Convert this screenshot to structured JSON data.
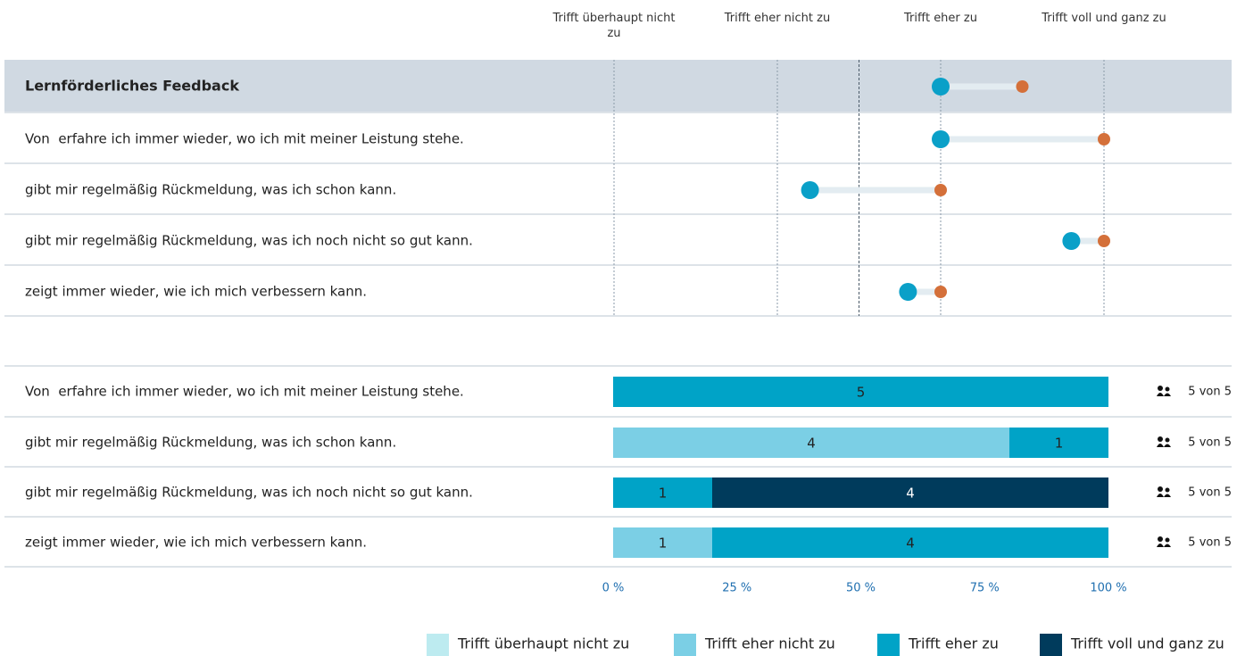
{
  "chart_data": [
    {
      "type": "dumbbell",
      "xlim": [
        1,
        4
      ],
      "xticks": [
        {
          "value": 1,
          "label": "Trifft überhaupt nicht zu"
        },
        {
          "value": 2,
          "label": "Trifft eher nicht zu"
        },
        {
          "value": 3,
          "label": "Trifft eher zu"
        },
        {
          "value": 4,
          "label": "Trifft voll und ganz zu"
        }
      ],
      "reference_line": 2.5,
      "group": {
        "label": "Lernförderliches Feedback",
        "values": [
          3.0,
          3.5
        ]
      },
      "categories": [
        "Von  erfahre ich immer wieder, wo ich mit meiner Leistung stehe.",
        "gibt mir regelmäßig Rückmeldung, was ich schon kann.",
        "gibt mir regelmäßig Rückmeldung, was ich noch nicht so gut kann.",
        "zeigt immer wieder, wie ich mich verbessern kann."
      ],
      "series": [
        {
          "color": "#0aa0c8",
          "values": [
            3.0,
            2.2,
            3.8,
            2.8
          ]
        },
        {
          "color": "#d4703a",
          "values": [
            4.0,
            3.0,
            4.0,
            3.0
          ]
        }
      ]
    },
    {
      "type": "stacked_bar",
      "categories": [
        "Von  erfahre ich immer wieder, wo ich mit meiner Leistung stehe.",
        "gibt mir regelmäßig Rückmeldung, was ich schon kann.",
        "gibt mir regelmäßig Rückmeldung, was ich noch nicht so gut kann.",
        "zeigt immer wieder, wie ich mich verbessern kann."
      ],
      "series": [
        {
          "name": "Trifft überhaupt nicht zu",
          "color": "#bdebf0",
          "values": [
            0,
            0,
            0,
            0
          ]
        },
        {
          "name": "Trifft eher nicht zu",
          "color": "#7bcfe5",
          "values": [
            0,
            4,
            0,
            1
          ]
        },
        {
          "name": "Trifft eher zu",
          "color": "#00a3c7",
          "values": [
            5,
            1,
            1,
            4
          ]
        },
        {
          "name": "Trifft voll und ganz zu",
          "color": "#003b5c",
          "values": [
            0,
            0,
            4,
            0
          ]
        }
      ],
      "n_labels": [
        "5 von 5",
        "5 von 5",
        "5 von 5",
        "5 von 5"
      ],
      "xlim": [
        0,
        5
      ],
      "xticks": [
        {
          "value": 0,
          "label": "0 %"
        },
        {
          "value": 1.25,
          "label": "25 %"
        },
        {
          "value": 2.5,
          "label": "50 %"
        },
        {
          "value": 3.75,
          "label": "75 %"
        },
        {
          "value": 5,
          "label": "100 %"
        }
      ]
    }
  ]
}
